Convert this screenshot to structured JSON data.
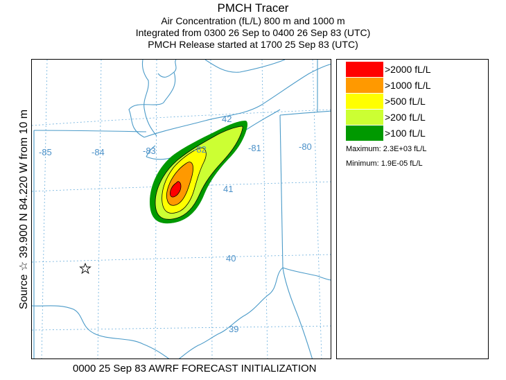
{
  "title": {
    "main": "PMCH Tracer",
    "line1": "Air Concentration (fL/L)  800 m and  1000 m",
    "line2": "Integrated from 0300 26 Sep to 0400 26 Sep 83 (UTC)",
    "line3": "PMCH Release started at 1700 25 Sep 83 (UTC)"
  },
  "side_label": "Source ☆  39.900  N  84.220  W     from  10 m",
  "map": {
    "longitude_labels": [
      "-85",
      "-84",
      "-83",
      "-82",
      "-81",
      "-80"
    ],
    "latitude_labels": [
      "42",
      "41",
      "40",
      "39"
    ],
    "source_marker": "star-icon",
    "colors": {
      "boundary": "#4a9ac8",
      "grid": "#6aaedc"
    }
  },
  "legend": {
    "items": [
      {
        "label": ">2000 fL/L",
        "color": "#ff0000"
      },
      {
        "label": ">1000 fL/L",
        "color": "#ff9900"
      },
      {
        "label": ">500 fL/L",
        "color": "#ffff00"
      },
      {
        "label": ">200 fL/L",
        "color": "#ccff33"
      },
      {
        "label": ">100 fL/L",
        "color": "#009900"
      }
    ],
    "maximum": "Maximum: 2.3E+03 fL/L",
    "minimum": "Minimum: 1.9E-05 fL/L"
  },
  "footer": "0000 25 Sep 83 AWRF FORECAST INITIALIZATION"
}
